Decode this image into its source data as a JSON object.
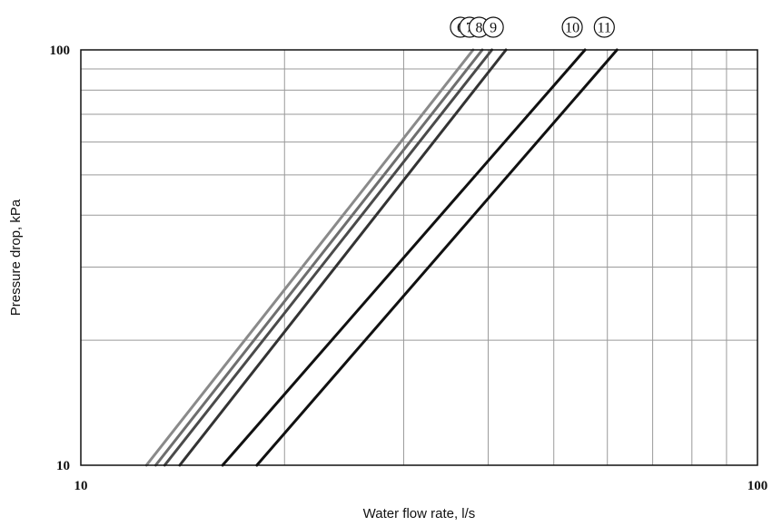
{
  "chart_data": {
    "type": "line",
    "title": "",
    "xlabel": "Water flow rate, l/s",
    "ylabel": "Pressure drop, kPa",
    "x_scale": "log",
    "y_scale": "log",
    "xlim": [
      10,
      100
    ],
    "ylim": [
      10,
      100
    ],
    "x_ticks": [
      10,
      100
    ],
    "x_tick_labels": [
      "10",
      "100"
    ],
    "y_ticks": [
      10,
      100
    ],
    "y_tick_labels": [
      "10",
      "100"
    ],
    "grid": true,
    "legend": "none",
    "series": [
      {
        "label": "6",
        "color": "#8a8a8a",
        "x": [
          12.5,
          38.0
        ],
        "y": [
          10,
          100
        ]
      },
      {
        "label": "7",
        "color": "#6e6e6e",
        "x": [
          12.9,
          39.2
        ],
        "y": [
          10,
          100
        ]
      },
      {
        "label": "8",
        "color": "#4a4a4a",
        "x": [
          13.3,
          40.5
        ],
        "y": [
          10,
          100
        ]
      },
      {
        "label": "9",
        "color": "#333333",
        "x": [
          14.0,
          42.5
        ],
        "y": [
          10,
          100
        ]
      },
      {
        "label": "10",
        "color": "#111111",
        "x": [
          16.2,
          55.6
        ],
        "y": [
          10,
          100
        ]
      },
      {
        "label": "11",
        "color": "#111111",
        "x": [
          18.2,
          62.0
        ],
        "y": [
          10,
          100
        ]
      }
    ]
  }
}
